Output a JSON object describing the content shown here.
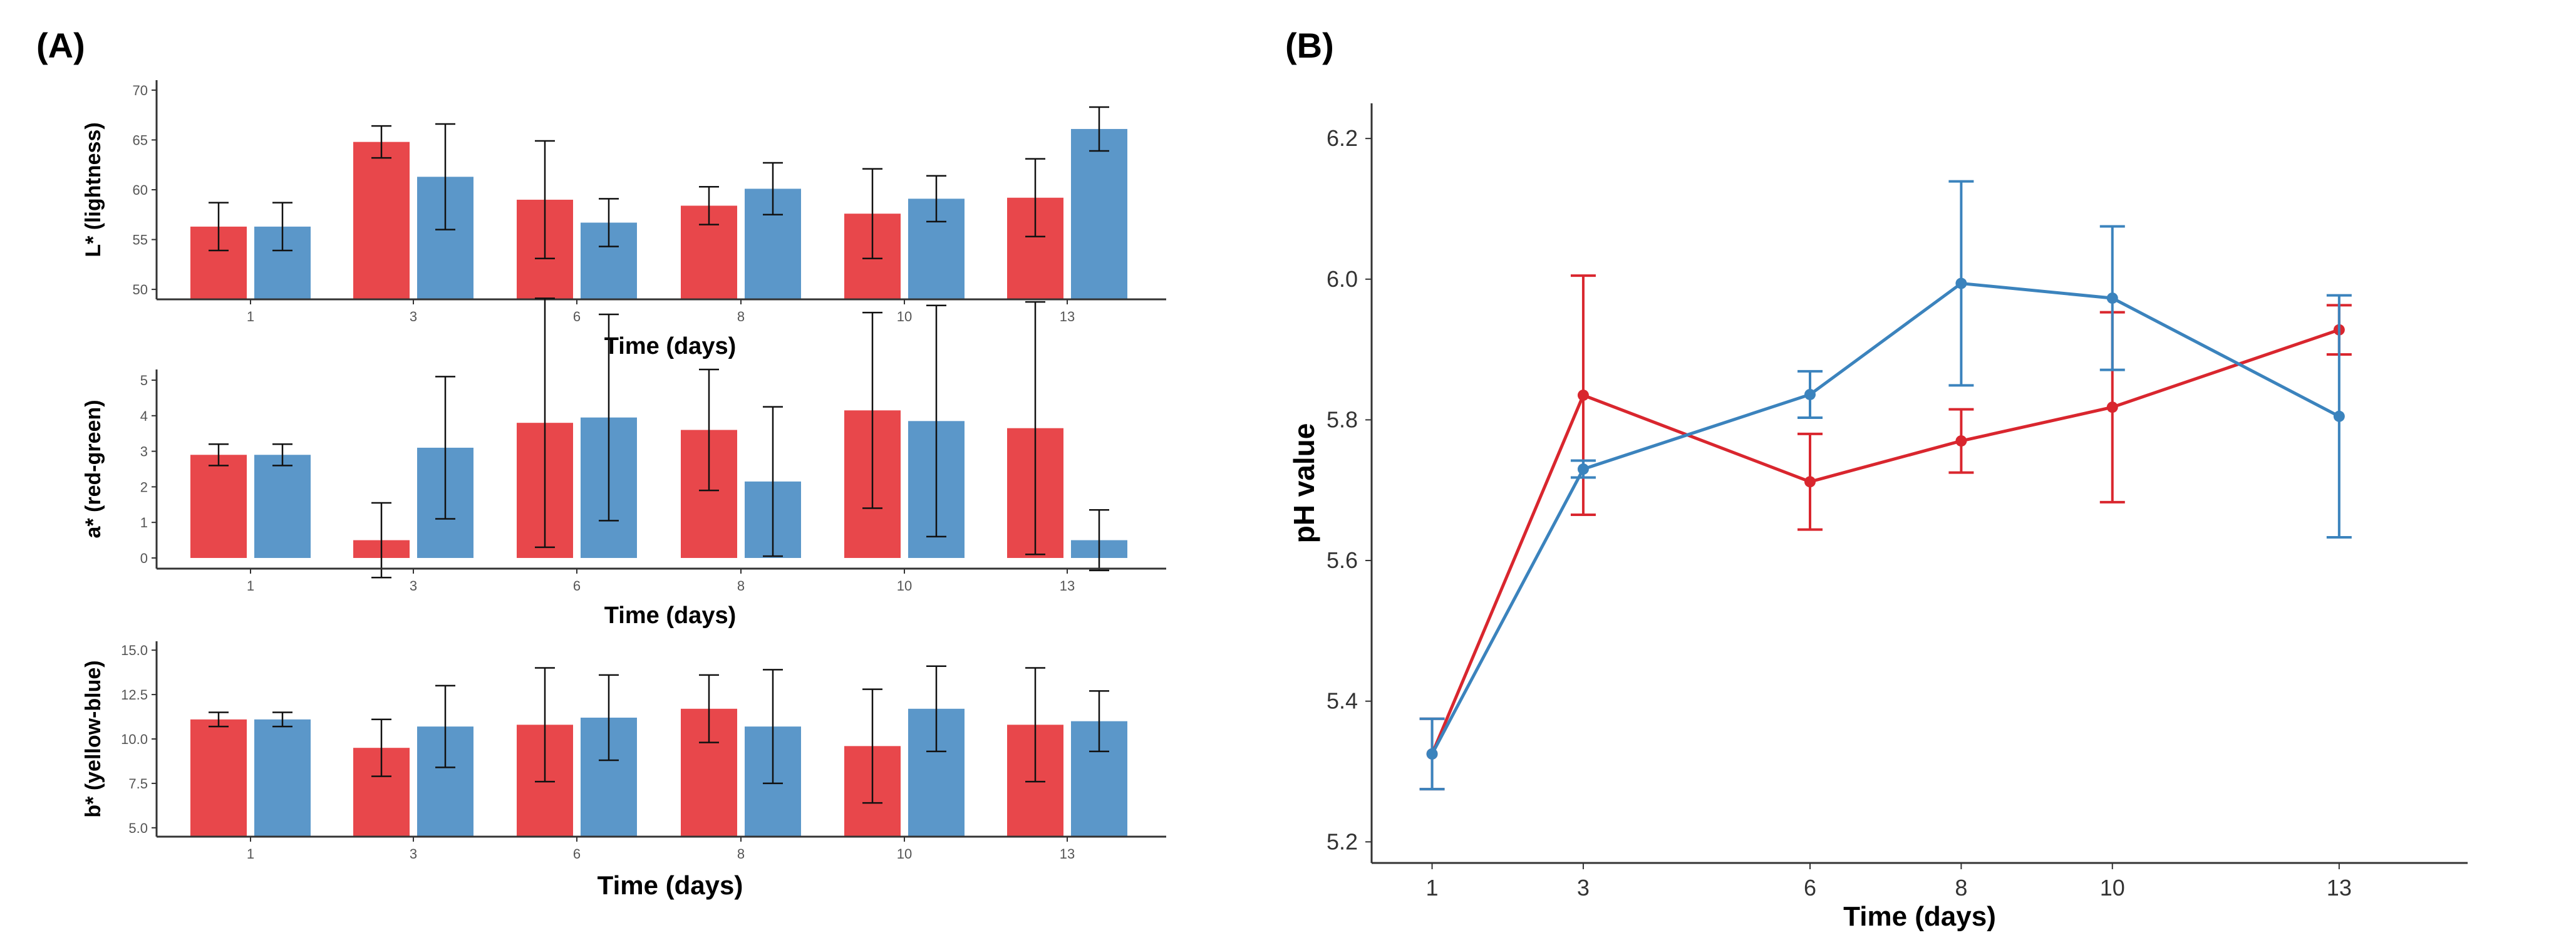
{
  "chart_data": [
    {
      "panel": "(A)",
      "type": "bar",
      "categories": [
        "1",
        "3",
        "6",
        "8",
        "10",
        "13"
      ],
      "ylabel": "L* (lightness)",
      "xlabel": "Time (days)",
      "ylim": [
        49,
        71
      ],
      "yticks": [
        50,
        55,
        60,
        65,
        70
      ],
      "series": [
        {
          "name": "red",
          "color": "#E8474B",
          "values": [
            56.3,
            64.8,
            59.0,
            58.4,
            57.6,
            59.2
          ],
          "errors": [
            2.4,
            1.6,
            5.9,
            1.9,
            4.5,
            3.9
          ]
        },
        {
          "name": "blue",
          "color": "#5B97C9",
          "values": [
            56.3,
            61.3,
            56.7,
            60.1,
            59.1,
            66.1
          ],
          "errors": [
            2.4,
            5.3,
            2.4,
            2.6,
            2.3,
            2.2
          ]
        }
      ]
    },
    {
      "panel": "(A)",
      "type": "bar",
      "categories": [
        "1",
        "3",
        "6",
        "8",
        "10",
        "13"
      ],
      "ylabel": "a* (red-green)",
      "xlabel": "Time (days)",
      "ylim": [
        -0.3,
        5.3
      ],
      "yticks": [
        0,
        1,
        2,
        3,
        4,
        5
      ],
      "series": [
        {
          "name": "red",
          "color": "#E8474B",
          "values": [
            2.9,
            0.5,
            3.8,
            3.6,
            4.15,
            3.65
          ],
          "errors": [
            0.3,
            1.05,
            3.5,
            1.7,
            2.75,
            3.55
          ]
        },
        {
          "name": "blue",
          "color": "#5B97C9",
          "values": [
            2.9,
            3.1,
            3.95,
            2.15,
            3.85,
            0.5
          ],
          "errors": [
            0.3,
            2.0,
            2.9,
            2.1,
            3.25,
            0.85
          ]
        }
      ]
    },
    {
      "panel": "(A)",
      "type": "bar",
      "categories": [
        "1",
        "3",
        "6",
        "8",
        "10",
        "13"
      ],
      "ylabel": "b* (yellow-blue)",
      "xlabel": "Time (days)",
      "ylim": [
        4.5,
        15.5
      ],
      "yticks": [
        "5.0",
        "7.5",
        "10.0",
        "12.5",
        "15.0"
      ],
      "series": [
        {
          "name": "red",
          "color": "#E8474B",
          "values": [
            11.1,
            9.5,
            10.8,
            11.7,
            9.6,
            10.8
          ],
          "errors": [
            0.4,
            1.6,
            3.2,
            1.9,
            3.2,
            3.2
          ]
        },
        {
          "name": "blue",
          "color": "#5B97C9",
          "values": [
            11.1,
            10.7,
            11.2,
            10.7,
            11.7,
            11.0
          ],
          "errors": [
            0.4,
            2.3,
            2.4,
            3.2,
            2.4,
            1.7
          ]
        }
      ]
    },
    {
      "panel": "(B)",
      "type": "line",
      "x": [
        1,
        3,
        6,
        8,
        10,
        13
      ],
      "xticks": [
        "1",
        "3",
        "6",
        "8",
        "10",
        "13"
      ],
      "xlim": [
        0.2,
        14.7
      ],
      "ylim": [
        5.17,
        6.25
      ],
      "yticks": [
        "5.2",
        "5.4",
        "5.6",
        "5.8",
        "6.0",
        "6.2"
      ],
      "ylabel": "pH value",
      "xlabel": "Time (days)",
      "series": [
        {
          "name": "red",
          "color": "#D9262E",
          "values": [
            5.325,
            5.835,
            5.712,
            5.77,
            5.818,
            5.928
          ],
          "errors": [
            0.05,
            0.17,
            0.068,
            0.045,
            0.135,
            0.035
          ]
        },
        {
          "name": "blue",
          "color": "#3B83BD",
          "values": [
            5.325,
            5.73,
            5.836,
            5.994,
            5.973,
            5.805
          ],
          "errors": [
            0.05,
            0.012,
            0.033,
            0.145,
            0.102,
            0.172
          ]
        }
      ]
    }
  ]
}
